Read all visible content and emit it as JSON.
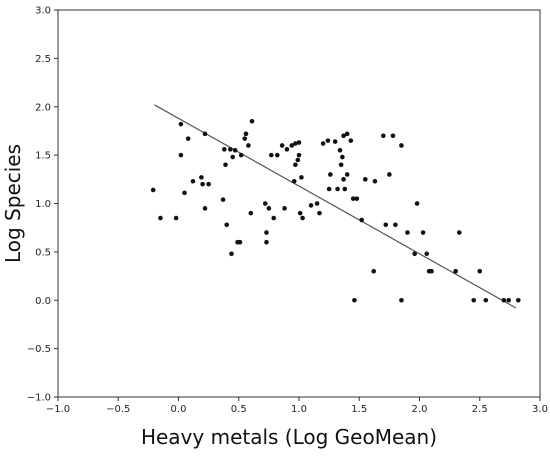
{
  "chart_data": {
    "type": "scatter",
    "title": "",
    "xlabel": "Heavy metals (Log GeoMean)",
    "ylabel": "Log Species",
    "xlim": [
      -1.0,
      3.0
    ],
    "ylim": [
      -1.0,
      3.0
    ],
    "x_ticks": [
      "−1.0",
      "−0.5",
      "0.0",
      "0.5",
      "1.0",
      "1.5",
      "2.0",
      "2.5",
      "3.0"
    ],
    "y_ticks": [
      "−1.0",
      "−0.5",
      "0.0",
      "0.5",
      "1.0",
      "1.5",
      "2.0",
      "2.5",
      "3.0"
    ],
    "x_tick_values": [
      -1.0,
      -0.5,
      0.0,
      0.5,
      1.0,
      1.5,
      2.0,
      2.5,
      3.0
    ],
    "y_tick_values": [
      -1.0,
      -0.5,
      0.0,
      0.5,
      1.0,
      1.5,
      2.0,
      2.5,
      3.0
    ],
    "grid": false,
    "legend": "none",
    "point_color": "#111111",
    "line_color": "#555555",
    "points": [
      [
        -0.21,
        1.14
      ],
      [
        -0.15,
        0.85
      ],
      [
        -0.02,
        0.85
      ],
      [
        0.02,
        1.82
      ],
      [
        0.02,
        1.5
      ],
      [
        0.05,
        1.11
      ],
      [
        0.08,
        1.67
      ],
      [
        0.12,
        1.23
      ],
      [
        0.19,
        1.27
      ],
      [
        0.2,
        1.2
      ],
      [
        0.22,
        0.95
      ],
      [
        0.22,
        1.72
      ],
      [
        0.25,
        1.2
      ],
      [
        0.37,
        1.04
      ],
      [
        0.38,
        1.56
      ],
      [
        0.39,
        1.4
      ],
      [
        0.4,
        0.78
      ],
      [
        0.43,
        1.56
      ],
      [
        0.44,
        0.48
      ],
      [
        0.45,
        1.48
      ],
      [
        0.47,
        1.55
      ],
      [
        0.49,
        0.6
      ],
      [
        0.51,
        0.6
      ],
      [
        0.52,
        1.5
      ],
      [
        0.55,
        1.67
      ],
      [
        0.56,
        1.72
      ],
      [
        0.58,
        1.6
      ],
      [
        0.6,
        0.9
      ],
      [
        0.61,
        1.85
      ],
      [
        0.72,
        1.0
      ],
      [
        0.73,
        0.6
      ],
      [
        0.73,
        0.7
      ],
      [
        0.75,
        0.95
      ],
      [
        0.77,
        1.5
      ],
      [
        0.79,
        0.85
      ],
      [
        0.82,
        1.5
      ],
      [
        0.86,
        1.6
      ],
      [
        0.88,
        0.95
      ],
      [
        0.9,
        1.56
      ],
      [
        0.94,
        1.6
      ],
      [
        0.96,
        1.23
      ],
      [
        0.97,
        1.62
      ],
      [
        0.97,
        1.4
      ],
      [
        0.99,
        1.45
      ],
      [
        1.0,
        1.5
      ],
      [
        1.0,
        1.63
      ],
      [
        1.01,
        0.9
      ],
      [
        1.02,
        1.27
      ],
      [
        1.03,
        0.85
      ],
      [
        1.1,
        0.98
      ],
      [
        1.15,
        1.0
      ],
      [
        1.17,
        0.9
      ],
      [
        1.2,
        1.62
      ],
      [
        1.24,
        1.65
      ],
      [
        1.25,
        1.15
      ],
      [
        1.26,
        1.3
      ],
      [
        1.3,
        1.64
      ],
      [
        1.32,
        1.15
      ],
      [
        1.34,
        1.55
      ],
      [
        1.35,
        1.4
      ],
      [
        1.36,
        1.48
      ],
      [
        1.37,
        1.25
      ],
      [
        1.37,
        1.7
      ],
      [
        1.38,
        1.15
      ],
      [
        1.4,
        1.72
      ],
      [
        1.4,
        1.3
      ],
      [
        1.43,
        1.65
      ],
      [
        1.45,
        1.05
      ],
      [
        1.46,
        0.0
      ],
      [
        1.48,
        1.05
      ],
      [
        1.52,
        0.83
      ],
      [
        1.55,
        1.25
      ],
      [
        1.62,
        0.3
      ],
      [
        1.63,
        1.23
      ],
      [
        1.7,
        1.7
      ],
      [
        1.72,
        0.78
      ],
      [
        1.75,
        1.3
      ],
      [
        1.78,
        1.7
      ],
      [
        1.8,
        0.78
      ],
      [
        1.85,
        1.6
      ],
      [
        1.85,
        0.0
      ],
      [
        1.9,
        0.7
      ],
      [
        1.96,
        0.48
      ],
      [
        1.98,
        1.0
      ],
      [
        2.03,
        0.7
      ],
      [
        2.06,
        0.48
      ],
      [
        2.08,
        0.3
      ],
      [
        2.1,
        0.3
      ],
      [
        2.3,
        0.3
      ],
      [
        2.33,
        0.7
      ],
      [
        2.45,
        0.0
      ],
      [
        2.5,
        0.3
      ],
      [
        2.55,
        0.0
      ],
      [
        2.7,
        0.0
      ],
      [
        2.74,
        0.0
      ],
      [
        2.82,
        0.0
      ]
    ],
    "fit_line": {
      "x": [
        -0.2,
        2.8
      ],
      "y": [
        2.02,
        -0.08
      ]
    }
  }
}
